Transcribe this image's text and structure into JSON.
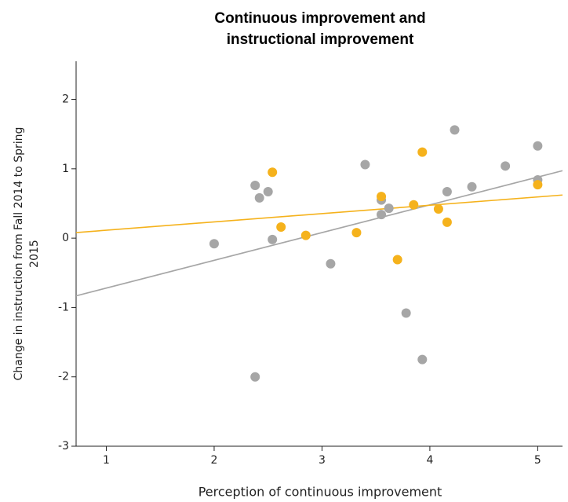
{
  "chart_data": {
    "type": "scatter",
    "title": [
      "Continuous improvement and",
      "instructional improvement"
    ],
    "xlabel": "Perception of continuous improvement",
    "ylabel": [
      "Change in instruction from Fall  2014 to Spring",
      "2015"
    ],
    "xlim": [
      0.72,
      5.23
    ],
    "ylim": [
      -3,
      2.55
    ],
    "xticks": [
      1,
      2,
      3,
      4,
      5
    ],
    "yticks": [
      -3,
      -2,
      -1,
      0,
      1,
      2
    ],
    "series": [
      {
        "color": "#a6a6a6",
        "x": [
          2.0,
          2.38,
          2.42,
          2.5,
          2.54,
          2.38,
          3.08,
          3.4,
          3.55,
          3.55,
          3.62,
          3.78,
          3.93,
          4.23,
          4.16,
          4.39,
          4.7,
          5.0,
          5.0
        ],
        "values": [
          -0.08,
          0.76,
          0.58,
          0.67,
          -0.02,
          -2.0,
          -0.37,
          1.06,
          0.55,
          0.34,
          0.43,
          -1.08,
          -1.75,
          1.56,
          0.67,
          0.74,
          1.04,
          1.33,
          0.84
        ],
        "fit": {
          "intercept": -1.12,
          "slope": 0.4
        }
      },
      {
        "color": "#f5b21c",
        "x": [
          2.54,
          2.62,
          2.85,
          3.32,
          3.55,
          3.7,
          3.85,
          3.93,
          4.08,
          4.16,
          5.0
        ],
        "values": [
          0.95,
          0.16,
          0.04,
          0.08,
          0.6,
          -0.31,
          0.48,
          1.24,
          0.42,
          0.23,
          0.77
        ],
        "fit": {
          "intercept": -0.006,
          "slope": 0.12
        }
      }
    ]
  }
}
